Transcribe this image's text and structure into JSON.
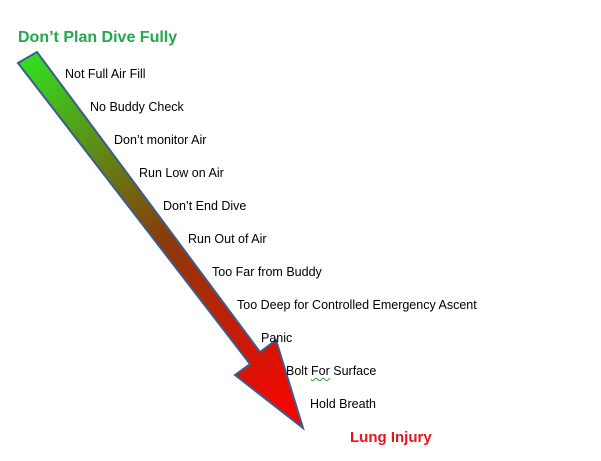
{
  "start_label": "Don’t Plan Dive Fully",
  "end_label": "Lung Injury",
  "steps": [
    "Not Full Air Fill",
    "No Buddy Check",
    "Don’t monitor Air",
    "Run Low on Air",
    "Don’t End Dive",
    "Run Out of Air",
    "Too Far from Buddy",
    "Too Deep for Controlled Emergency Ascent",
    "Panic",
    "Bolt For Surface",
    "Hold Breath"
  ],
  "colors": {
    "start_label": "#23a84a",
    "end_label": "#e8141b",
    "arrow_top": "#33dd22",
    "arrow_mid": "#8a3a0a",
    "arrow_bottom": "#ff0000",
    "arrow_outline": "#3b5c8c"
  }
}
